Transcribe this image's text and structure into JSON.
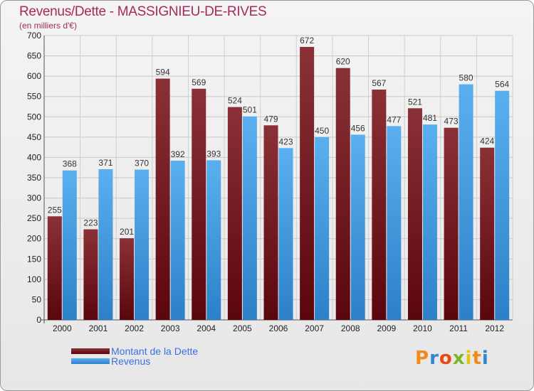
{
  "title": "Revenus/Dette - MASSIGNIEU-DE-RIVES",
  "subtitle": "(en milliers d'€)",
  "colors": {
    "dette": "#6e0f17",
    "dette_light": "#8a3137",
    "revenus": "#2f86d1",
    "revenus_light": "#5ab0ef",
    "title": "#a6285e",
    "legend": "#3a6fe0"
  },
  "legend": {
    "dette": "Montant de la Dette",
    "revenus": "Revenus"
  },
  "logo": {
    "text": "Proxiti"
  },
  "chart_data": {
    "type": "bar",
    "title": "Revenus/Dette - MASSIGNIEU-DE-RIVES",
    "subtitle": "(en milliers d'€)",
    "categories": [
      "2000",
      "2001",
      "2002",
      "2003",
      "2004",
      "2005",
      "2006",
      "2007",
      "2008",
      "2009",
      "2010",
      "2011",
      "2012"
    ],
    "series": [
      {
        "name": "Montant de la Dette",
        "values": [
          255,
          223,
          201,
          594,
          569,
          524,
          479,
          672,
          620,
          567,
          521,
          473,
          424
        ]
      },
      {
        "name": "Revenus",
        "values": [
          368,
          371,
          370,
          392,
          393,
          501,
          423,
          450,
          456,
          477,
          481,
          580,
          564
        ]
      }
    ],
    "ylim": [
      0,
      700
    ],
    "yticks": [
      0,
      50,
      100,
      150,
      200,
      250,
      300,
      350,
      400,
      450,
      500,
      550,
      600,
      650,
      700
    ],
    "grid": true,
    "legend_position": "bottom-left"
  }
}
